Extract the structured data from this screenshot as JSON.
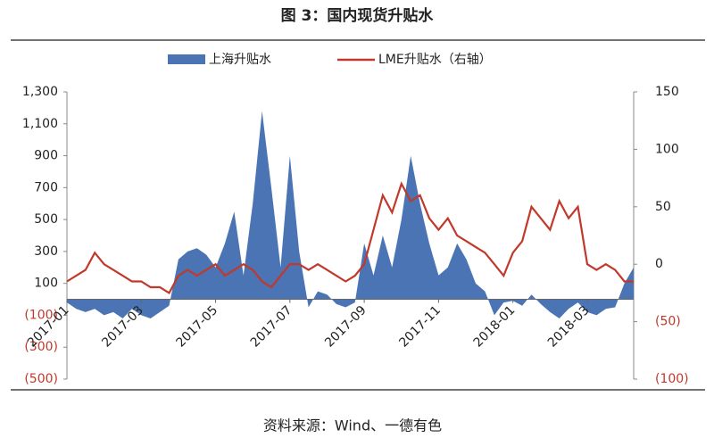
{
  "chart_data": {
    "type": "area-line",
    "title": "图 3：国内现货升贴水",
    "source": "资料来源：Wind、一德有色",
    "categories": [
      "2017-01",
      null,
      null,
      null,
      null,
      null,
      null,
      null,
      "2017-03",
      null,
      null,
      null,
      null,
      null,
      null,
      null,
      "2017-05",
      null,
      null,
      null,
      null,
      null,
      null,
      null,
      "2017-07",
      null,
      null,
      null,
      null,
      null,
      null,
      null,
      "2017-09",
      null,
      null,
      null,
      null,
      null,
      null,
      null,
      "2017-11",
      null,
      null,
      null,
      null,
      null,
      null,
      null,
      "2018-01",
      null,
      null,
      null,
      null,
      null,
      null,
      null,
      "2018-03",
      null,
      null,
      null,
      null,
      null
    ],
    "series": [
      {
        "name": "上海升贴水",
        "type": "area",
        "color": "#4a74b4",
        "values": [
          -20,
          -60,
          -80,
          -60,
          -100,
          -80,
          -120,
          -60,
          -100,
          -120,
          -80,
          -40,
          250,
          300,
          320,
          280,
          200,
          350,
          550,
          150,
          600,
          1180,
          700,
          200,
          900,
          300,
          -50,
          50,
          30,
          -30,
          -50,
          -20,
          350,
          150,
          400,
          200,
          500,
          900,
          600,
          350,
          150,
          200,
          350,
          250,
          100,
          50,
          -100,
          -20,
          -10,
          -40,
          30,
          -30,
          -80,
          -120,
          -60,
          -20,
          -80,
          -100,
          -60,
          -50,
          100,
          200
        ]
      },
      {
        "name": "LME升贴水（右轴）",
        "type": "line",
        "axis": "y2",
        "color": "#c0392b",
        "values": [
          -15,
          -10,
          -5,
          10,
          0,
          -5,
          -10,
          -15,
          -15,
          -20,
          -20,
          -25,
          -10,
          -5,
          -10,
          -5,
          0,
          -10,
          -5,
          0,
          -5,
          -15,
          -20,
          -10,
          0,
          0,
          -5,
          0,
          -5,
          -10,
          -15,
          -10,
          0,
          30,
          60,
          45,
          70,
          55,
          60,
          40,
          30,
          40,
          25,
          20,
          15,
          10,
          0,
          -10,
          10,
          20,
          50,
          40,
          30,
          55,
          40,
          50,
          0,
          -5,
          0,
          -5,
          -15,
          -15
        ]
      }
    ],
    "ylim": [
      -500,
      1300
    ],
    "yticks": [
      {
        "value": -500,
        "label": "(500)"
      },
      {
        "value": -300,
        "label": "(300)"
      },
      {
        "value": -100,
        "label": "(100)"
      },
      100,
      300,
      500,
      700,
      900,
      {
        "value": 1100,
        "label": "1,100"
      },
      {
        "value": 1300,
        "label": "1,300"
      }
    ],
    "y2lim": [
      -100,
      150
    ],
    "y2ticks": [
      {
        "value": -100,
        "label": "(100)"
      },
      {
        "value": -50,
        "label": "(50)"
      },
      0,
      50,
      100,
      150
    ]
  }
}
